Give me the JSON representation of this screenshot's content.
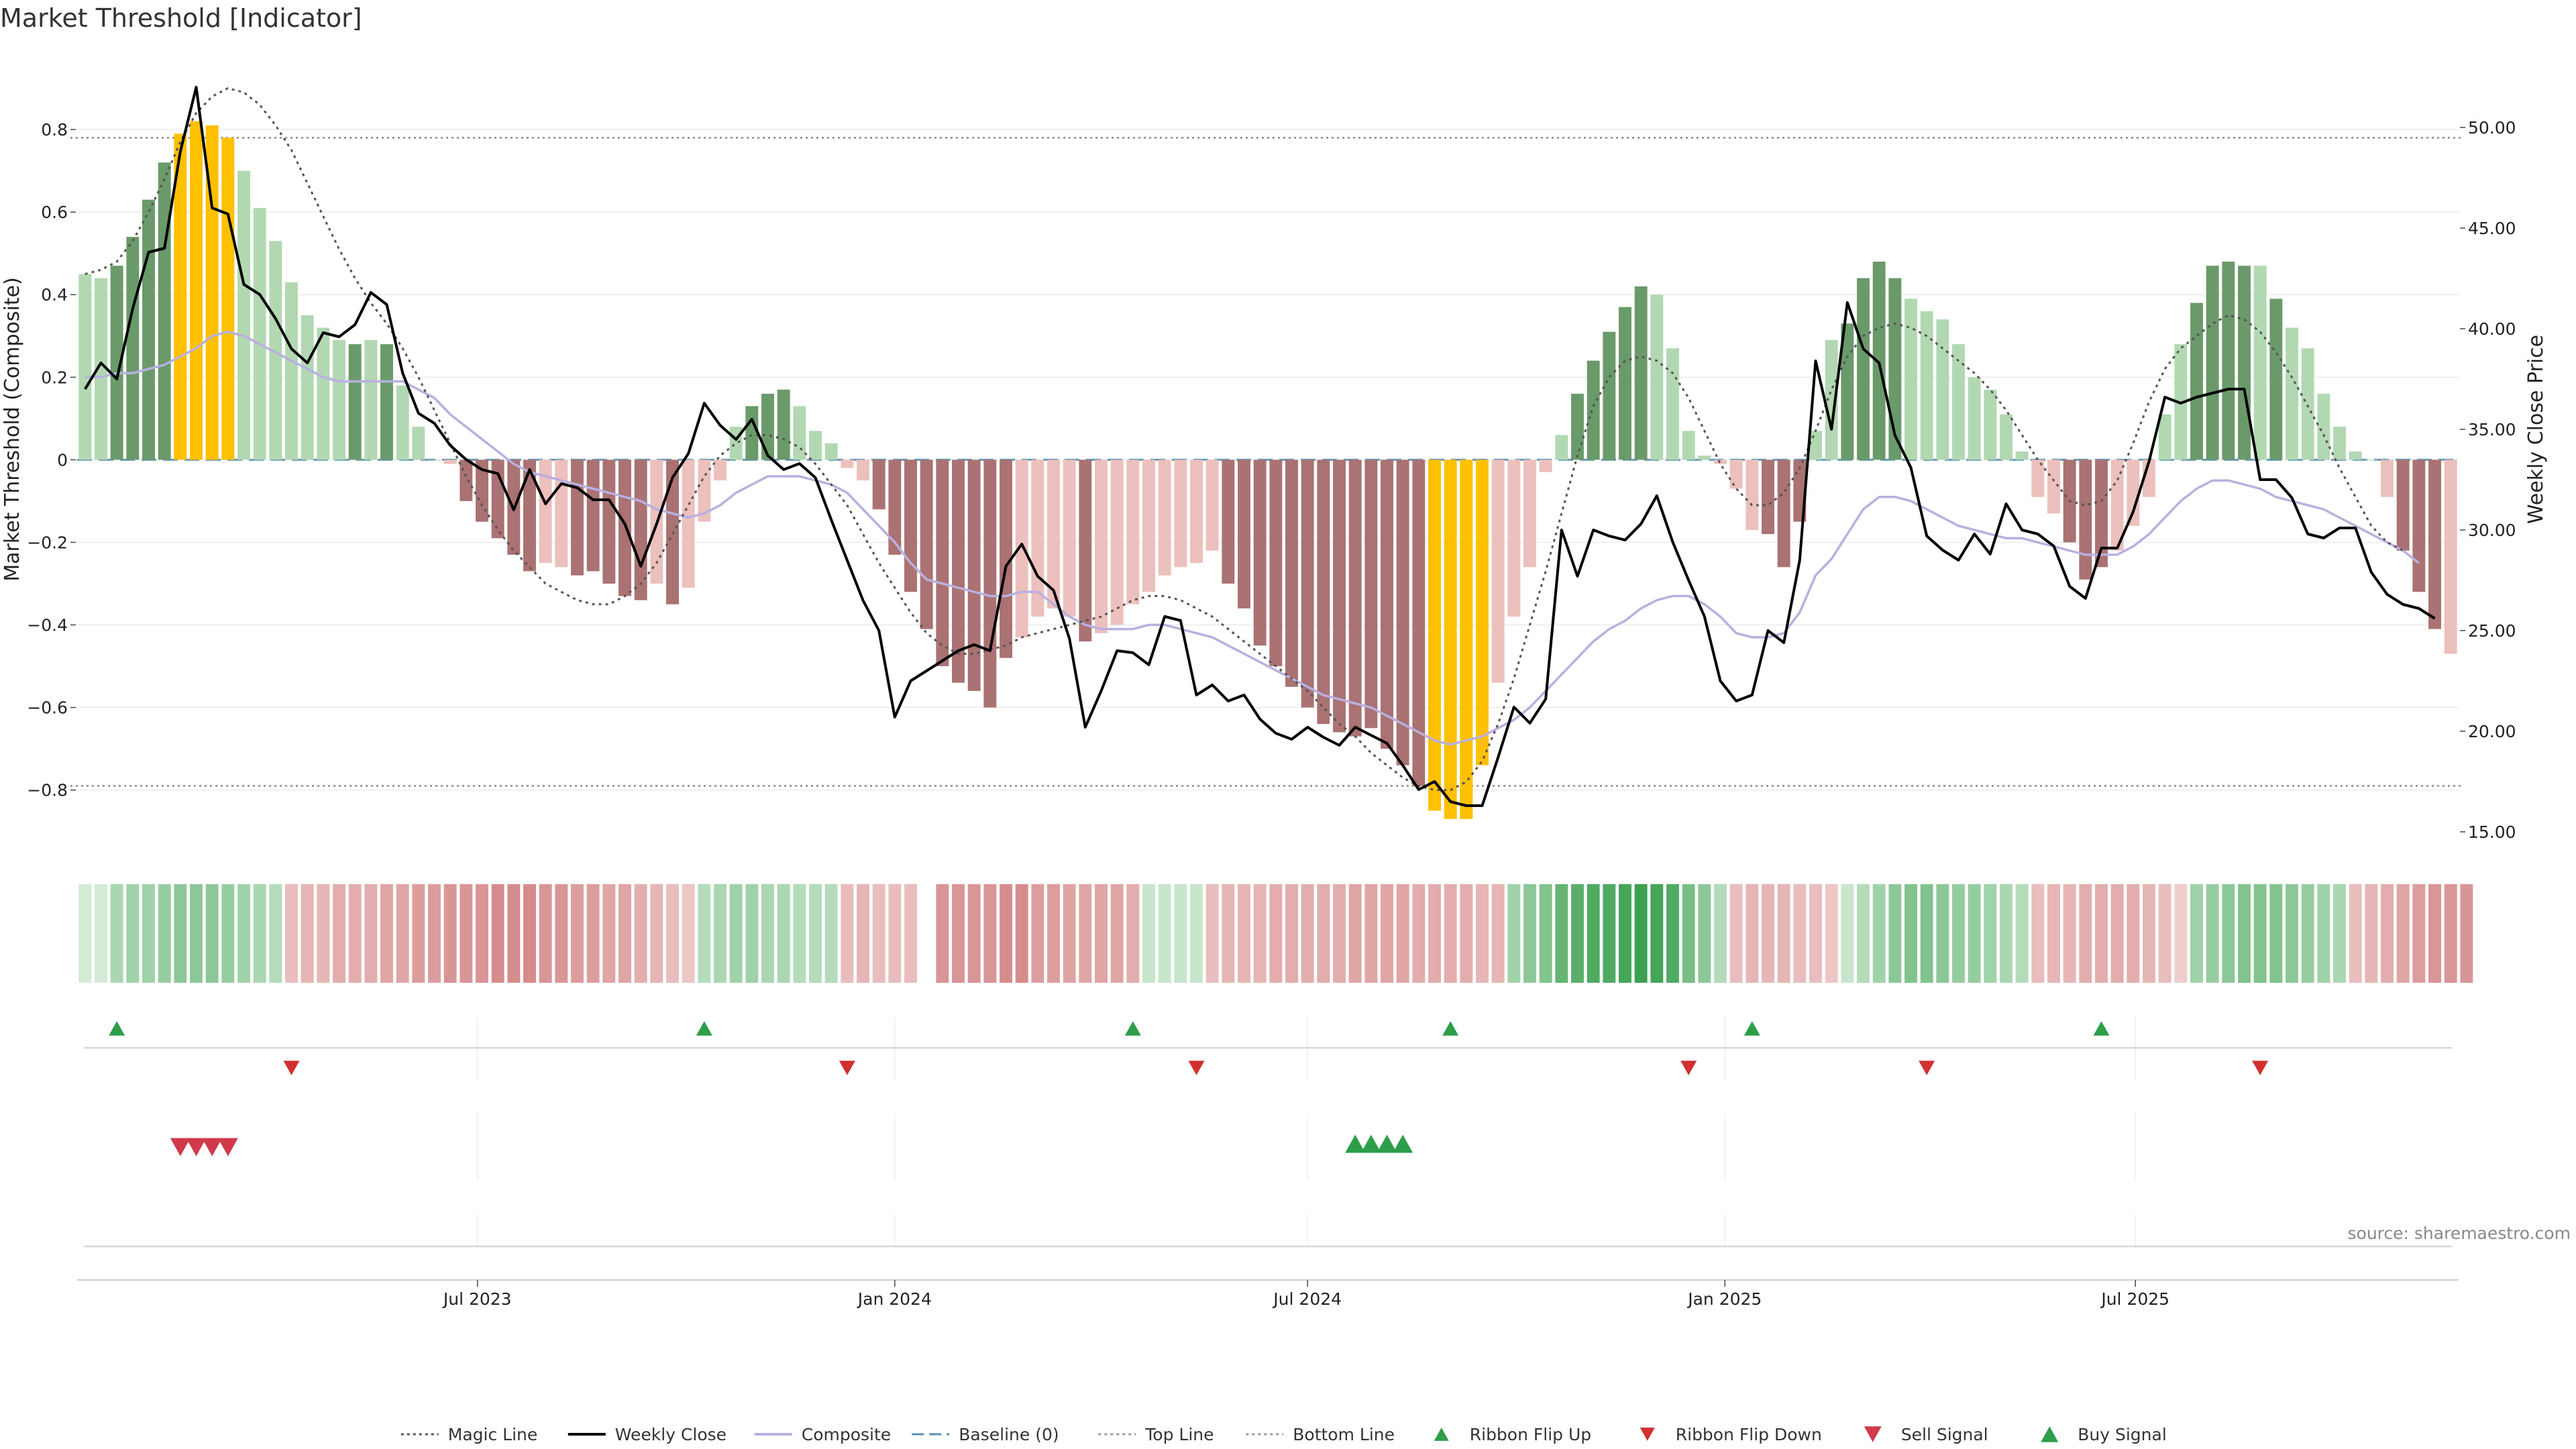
{
  "chart_data": {
    "type": "bar",
    "title": "Market Threshold [Indicator]",
    "ylabel_left": "Market Threshold (Composite)",
    "ylabel_right": "Weekly Close Price",
    "ylim_left": [
      -0.95,
      1.0
    ],
    "ylim_right": [
      14.0,
      54.0
    ],
    "yticks_left": [
      {
        "v": 0.8,
        "label": "0.8"
      },
      {
        "v": 0.6,
        "label": "0.6"
      },
      {
        "v": 0.4,
        "label": "0.4"
      },
      {
        "v": 0.2,
        "label": "0.2"
      },
      {
        "v": 0,
        "label": "0"
      },
      {
        "v": -0.2,
        "label": "−0.2"
      },
      {
        "v": -0.4,
        "label": "−0.4"
      },
      {
        "v": -0.6,
        "label": "−0.6"
      },
      {
        "v": -0.8,
        "label": "−0.8"
      }
    ],
    "yticks_right": [
      {
        "v": 50,
        "label": "50.00"
      },
      {
        "v": 45,
        "label": "45.00"
      },
      {
        "v": 40,
        "label": "40.00"
      },
      {
        "v": 35,
        "label": "35.00"
      },
      {
        "v": 30,
        "label": "30.00"
      },
      {
        "v": 25,
        "label": "25.00"
      },
      {
        "v": 20,
        "label": "20.00"
      },
      {
        "v": 15,
        "label": "15.00"
      }
    ],
    "x_start": "2023-01-09",
    "x_end": "2025-10-27",
    "x_ticks": [
      {
        "date": "2023-07-01",
        "label": "Jul 2023"
      },
      {
        "date": "2024-01-01",
        "label": "Jan 2024"
      },
      {
        "date": "2024-07-01",
        "label": "Jul 2024"
      },
      {
        "date": "2025-01-01",
        "label": "Jan 2025"
      },
      {
        "date": "2025-07-01",
        "label": "Jul 2025"
      }
    ],
    "top_line": 0.78,
    "bottom_line": -0.79,
    "baseline": 0,
    "composite": [
      0.45,
      0.44,
      0.47,
      0.54,
      0.63,
      0.72,
      0.79,
      0.82,
      0.81,
      0.78,
      0.7,
      0.61,
      0.53,
      0.43,
      0.35,
      0.32,
      0.29,
      0.28,
      0.29,
      0.28,
      0.18,
      0.08,
      0.0,
      -0.01,
      -0.1,
      -0.15,
      -0.19,
      -0.23,
      -0.27,
      -0.25,
      -0.26,
      -0.28,
      -0.27,
      -0.3,
      -0.33,
      -0.34,
      -0.3,
      -0.35,
      -0.31,
      -0.15,
      -0.05,
      0.08,
      0.13,
      0.16,
      0.17,
      0.13,
      0.07,
      0.04,
      -0.02,
      -0.05,
      -0.12,
      -0.23,
      -0.32,
      -0.41,
      -0.5,
      -0.54,
      -0.56,
      -0.6,
      -0.48,
      -0.43,
      -0.38,
      -0.36,
      -0.38,
      -0.44,
      -0.42,
      -0.4,
      -0.35,
      -0.32,
      -0.28,
      -0.26,
      -0.25,
      -0.22,
      -0.3,
      -0.36,
      -0.45,
      -0.5,
      -0.55,
      -0.6,
      -0.64,
      -0.66,
      -0.67,
      -0.65,
      -0.7,
      -0.74,
      -0.79,
      -0.85,
      -0.87,
      -0.87,
      -0.74,
      -0.54,
      -0.38,
      -0.26,
      -0.03,
      0.06,
      0.16,
      0.24,
      0.31,
      0.37,
      0.42,
      0.4,
      0.27,
      0.07,
      0.01,
      -0.01,
      -0.07,
      -0.17,
      -0.18,
      -0.26,
      -0.15,
      0.07,
      0.29,
      0.33,
      0.44,
      0.48,
      0.44,
      0.39,
      0.36,
      0.34,
      0.28,
      0.2,
      0.17,
      0.11,
      0.02,
      -0.09,
      -0.13,
      -0.2,
      -0.29,
      -0.26,
      -0.22,
      -0.16,
      -0.09,
      0.11,
      0.28,
      0.38,
      0.47,
      0.48,
      0.47,
      0.47,
      0.39,
      0.32,
      0.27,
      0.16,
      0.08,
      0.02,
      0.0,
      -0.09,
      -0.22,
      -0.32,
      -0.41,
      -0.47
    ],
    "composite_states": [
      2,
      2,
      3,
      3,
      3,
      3,
      4,
      4,
      4,
      4,
      2,
      2,
      2,
      2,
      2,
      2,
      2,
      3,
      2,
      3,
      2,
      2,
      0,
      0,
      3,
      3,
      3,
      3,
      3,
      1,
      1,
      3,
      3,
      3,
      3,
      3,
      1,
      3,
      1,
      1,
      1,
      2,
      3,
      3,
      3,
      2,
      2,
      2,
      1,
      1,
      3,
      3,
      3,
      3,
      3,
      3,
      3,
      3,
      3,
      1,
      1,
      1,
      1,
      3,
      1,
      1,
      1,
      1,
      1,
      1,
      1,
      1,
      3,
      3,
      3,
      3,
      3,
      3,
      3,
      3,
      3,
      3,
      3,
      3,
      3,
      4,
      4,
      4,
      4,
      1,
      1,
      1,
      1,
      2,
      3,
      3,
      3,
      3,
      3,
      2,
      2,
      2,
      0,
      0,
      0,
      1,
      3,
      3,
      3,
      1,
      2,
      3,
      3,
      3,
      3,
      2,
      2,
      2,
      2,
      2,
      2,
      2,
      2,
      2,
      1,
      3,
      3,
      3,
      1,
      1,
      1,
      1,
      2,
      3,
      3,
      3,
      3,
      2,
      3,
      2,
      2,
      2,
      2,
      2,
      2,
      1,
      3,
      3,
      3
    ],
    "weekly_close": [
      37,
      38.3,
      37.5,
      41,
      43.8,
      44,
      48.8,
      52,
      46,
      45.7,
      42.2,
      41.7,
      40.5,
      39,
      38.3,
      39.8,
      39.6,
      40.2,
      41.8,
      41.2,
      37.8,
      35.8,
      35.3,
      34.2,
      33.5,
      33,
      32.8,
      31,
      33,
      31.3,
      32.3,
      32.1,
      31.5,
      31.5,
      30.3,
      28.2,
      30.3,
      32.6,
      33.8,
      36.3,
      35.2,
      34.5,
      35.5,
      33.7,
      33,
      33.3,
      32.6,
      30.5,
      28.5,
      26.5,
      25,
      20.7,
      22.5,
      23,
      23.5,
      24,
      24.3,
      24,
      28.2,
      29.3,
      27.7,
      27,
      24.6,
      20.2,
      22,
      24,
      23.9,
      23.3,
      25.7,
      25.5,
      21.8,
      22.3,
      21.5,
      21.8,
      20.6,
      19.9,
      19.6,
      20.2,
      19.7,
      19.3,
      20.2,
      19.8,
      19.4,
      18.3,
      17.1,
      17.5,
      16.5,
      16.3,
      16.3,
      18.7,
      21.2,
      20.4,
      21.6,
      30,
      27.7,
      30,
      29.7,
      29.5,
      30.3,
      31.7,
      29.4,
      27.5,
      25.7,
      22.5,
      21.5,
      21.8,
      25,
      24.4,
      28.5,
      38.4,
      35,
      41.3,
      39,
      38.3,
      34.7,
      33.1,
      29.7,
      29,
      28.5,
      29.8,
      28.8,
      31.3,
      30,
      29.8,
      29.2,
      27.2,
      26.6,
      29.1,
      29.1,
      30.9,
      33.4,
      36.6,
      36.3,
      36.6,
      36.8,
      37,
      37,
      32.5,
      32.5,
      31.6,
      29.8,
      29.6,
      30.1,
      30.1,
      27.9,
      26.8,
      26.3,
      26.1,
      25.6
    ],
    "composite_smooth": [
      0.2,
      0.2,
      0.21,
      0.21,
      0.22,
      0.23,
      0.25,
      0.27,
      0.3,
      0.31,
      0.3,
      0.28,
      0.26,
      0.24,
      0.22,
      0.2,
      0.19,
      0.19,
      0.19,
      0.19,
      0.19,
      0.17,
      0.15,
      0.11,
      0.08,
      0.05,
      0.02,
      -0.01,
      -0.03,
      -0.04,
      -0.05,
      -0.06,
      -0.07,
      -0.08,
      -0.09,
      -0.1,
      -0.12,
      -0.13,
      -0.14,
      -0.13,
      -0.11,
      -0.08,
      -0.06,
      -0.04,
      -0.04,
      -0.04,
      -0.05,
      -0.06,
      -0.08,
      -0.12,
      -0.16,
      -0.2,
      -0.25,
      -0.29,
      -0.3,
      -0.31,
      -0.32,
      -0.33,
      -0.33,
      -0.32,
      -0.32,
      -0.35,
      -0.38,
      -0.4,
      -0.41,
      -0.41,
      -0.41,
      -0.4,
      -0.4,
      -0.41,
      -0.42,
      -0.43,
      -0.45,
      -0.47,
      -0.49,
      -0.51,
      -0.53,
      -0.55,
      -0.57,
      -0.58,
      -0.59,
      -0.6,
      -0.62,
      -0.64,
      -0.66,
      -0.68,
      -0.69,
      -0.68,
      -0.67,
      -0.65,
      -0.63,
      -0.6,
      -0.56,
      -0.52,
      -0.48,
      -0.44,
      -0.41,
      -0.39,
      -0.36,
      -0.34,
      -0.33,
      -0.33,
      -0.35,
      -0.38,
      -0.42,
      -0.43,
      -0.43,
      -0.42,
      -0.37,
      -0.28,
      -0.24,
      -0.18,
      -0.12,
      -0.09,
      -0.09,
      -0.1,
      -0.12,
      -0.14,
      -0.16,
      -0.17,
      -0.18,
      -0.19,
      -0.19,
      -0.2,
      -0.21,
      -0.22,
      -0.23,
      -0.23,
      -0.23,
      -0.21,
      -0.18,
      -0.14,
      -0.1,
      -0.07,
      -0.05,
      -0.05,
      -0.06,
      -0.07,
      -0.09,
      -0.1,
      -0.11,
      -0.12,
      -0.14,
      -0.16,
      -0.18,
      -0.2,
      -0.22,
      -0.25
    ],
    "magic_line": [
      0.45,
      0.46,
      0.48,
      0.53,
      0.6,
      0.68,
      0.77,
      0.84,
      0.88,
      0.9,
      0.89,
      0.86,
      0.81,
      0.75,
      0.67,
      0.59,
      0.51,
      0.44,
      0.38,
      0.33,
      0.27,
      0.2,
      0.12,
      0.04,
      -0.04,
      -0.11,
      -0.17,
      -0.22,
      -0.26,
      -0.3,
      -0.32,
      -0.34,
      -0.35,
      -0.35,
      -0.33,
      -0.3,
      -0.25,
      -0.18,
      -0.11,
      -0.04,
      0.01,
      0.04,
      0.06,
      0.06,
      0.05,
      0.03,
      -0.01,
      -0.06,
      -0.11,
      -0.18,
      -0.25,
      -0.31,
      -0.37,
      -0.42,
      -0.45,
      -0.47,
      -0.47,
      -0.46,
      -0.45,
      -0.43,
      -0.42,
      -0.41,
      -0.4,
      -0.39,
      -0.38,
      -0.36,
      -0.34,
      -0.33,
      -0.33,
      -0.34,
      -0.36,
      -0.38,
      -0.41,
      -0.44,
      -0.47,
      -0.5,
      -0.53,
      -0.56,
      -0.6,
      -0.64,
      -0.67,
      -0.71,
      -0.74,
      -0.77,
      -0.79,
      -0.8,
      -0.8,
      -0.78,
      -0.73,
      -0.64,
      -0.53,
      -0.4,
      -0.27,
      -0.13,
      0.01,
      0.13,
      0.2,
      0.24,
      0.25,
      0.24,
      0.21,
      0.15,
      0.07,
      -0.01,
      -0.07,
      -0.11,
      -0.11,
      -0.08,
      -0.02,
      0.07,
      0.17,
      0.25,
      0.3,
      0.32,
      0.33,
      0.32,
      0.3,
      0.27,
      0.24,
      0.21,
      0.17,
      0.12,
      0.06,
      0.0,
      -0.05,
      -0.1,
      -0.11,
      -0.1,
      -0.05,
      0.04,
      0.14,
      0.22,
      0.27,
      0.3,
      0.33,
      0.35,
      0.34,
      0.31,
      0.26,
      0.2,
      0.13,
      0.06,
      -0.02,
      -0.09,
      -0.16,
      -0.2,
      -0.22
    ],
    "ribbon_values": [
      0.15,
      0.15,
      0.35,
      0.4,
      0.4,
      0.45,
      0.5,
      0.5,
      0.5,
      0.45,
      0.4,
      0.35,
      0.3,
      -0.3,
      -0.35,
      -0.35,
      -0.4,
      -0.4,
      -0.4,
      -0.45,
      -0.45,
      -0.5,
      -0.5,
      -0.55,
      -0.55,
      -0.55,
      -0.6,
      -0.6,
      -0.6,
      -0.55,
      -0.55,
      -0.5,
      -0.5,
      -0.45,
      -0.45,
      -0.4,
      -0.35,
      -0.3,
      -0.25,
      0.3,
      0.35,
      0.4,
      0.4,
      0.35,
      0.35,
      0.3,
      0.3,
      0.3,
      -0.3,
      -0.35,
      -0.3,
      -0.3,
      -0.3,
      null,
      -0.55,
      -0.55,
      -0.55,
      -0.55,
      -0.6,
      -0.6,
      -0.5,
      -0.5,
      -0.45,
      -0.45,
      -0.45,
      -0.45,
      -0.4,
      0.2,
      0.2,
      0.2,
      0.2,
      -0.3,
      -0.35,
      -0.35,
      -0.35,
      -0.4,
      -0.4,
      -0.4,
      -0.4,
      -0.4,
      -0.45,
      -0.45,
      -0.45,
      -0.45,
      -0.4,
      -0.4,
      -0.4,
      -0.4,
      -0.35,
      -0.35,
      0.4,
      0.5,
      0.55,
      0.7,
      0.75,
      0.8,
      0.8,
      0.85,
      0.9,
      0.85,
      0.8,
      0.6,
      0.5,
      0.3,
      -0.3,
      -0.35,
      -0.35,
      -0.35,
      -0.3,
      -0.3,
      -0.25,
      0.2,
      0.3,
      0.4,
      0.5,
      0.55,
      0.55,
      0.5,
      0.45,
      0.45,
      0.4,
      0.35,
      0.3,
      -0.3,
      -0.35,
      -0.35,
      -0.4,
      -0.4,
      -0.4,
      -0.4,
      -0.35,
      -0.3,
      -0.2,
      0.4,
      0.45,
      0.5,
      0.55,
      0.55,
      0.55,
      0.5,
      0.45,
      0.4,
      0.35,
      -0.3,
      -0.35,
      -0.4,
      -0.45,
      -0.5,
      -0.55,
      -0.55,
      -0.55
    ],
    "ribbon_flip_up_weeks": [
      2,
      39,
      66,
      86,
      105,
      127
    ],
    "ribbon_flip_down_weeks": [
      13,
      48,
      70,
      101,
      116,
      137
    ],
    "sell_signal_weeks": [
      6,
      7,
      8,
      9
    ],
    "buy_signal_weeks": [
      80,
      81,
      82,
      83
    ],
    "legend": [
      {
        "name": "Magic Line",
        "style": "dotted",
        "color": "#555555"
      },
      {
        "name": "Weekly Close",
        "style": "solid",
        "color": "#000000"
      },
      {
        "name": "Composite",
        "style": "solid",
        "color": "#b8b0e0"
      },
      {
        "name": "Baseline (0)",
        "style": "dashed",
        "color": "#5a8fb0"
      },
      {
        "name": "Top Line",
        "style": "dotted",
        "color": "#999999"
      },
      {
        "name": "Bottom Line",
        "style": "dotted",
        "color": "#999999"
      },
      {
        "name": "Ribbon Flip Up",
        "style": "marker-up",
        "color": "#2e9e4a"
      },
      {
        "name": "Ribbon Flip Down",
        "style": "marker-down",
        "color": "#d03030"
      },
      {
        "name": "Sell Signal",
        "style": "marker-down",
        "color": "#d03a4a"
      },
      {
        "name": "Buy Signal",
        "style": "marker-up",
        "color": "#2e9e4a"
      }
    ],
    "source": "source: sharemaestro.com",
    "colors": {
      "pos_strong": "#6a9a6a",
      "pos_weak": "#b2d8b2",
      "neg_strong": "#aa7272",
      "neg_weak": "#ecc0bc",
      "extreme": "#ffc000",
      "grid": "#ebebeb"
    }
  }
}
